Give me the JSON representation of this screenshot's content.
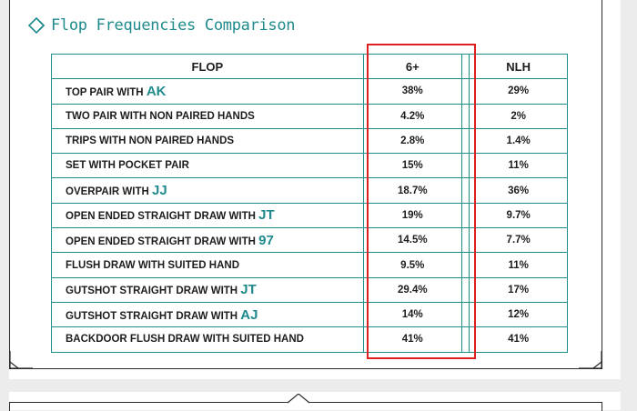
{
  "title": "Flop Frequencies Comparison",
  "icon": "double-diamond-icon",
  "colors": {
    "accent": "#1f8a8c",
    "highlight": "#e02020",
    "border": "#1a8f8c"
  },
  "table": {
    "headers": [
      "FLOP",
      "6+",
      "NLH"
    ],
    "rows": [
      {
        "label": "TOP PAIR WITH ",
        "cards": "AK",
        "six": "38%",
        "nlh": "29%"
      },
      {
        "label": "TWO PAIR WITH NON PAIRED HANDS",
        "cards": "",
        "six": "4.2%",
        "nlh": "2%"
      },
      {
        "label": "TRIPS WITH NON PAIRED HANDS",
        "cards": "",
        "six": "2.8%",
        "nlh": "1.4%"
      },
      {
        "label": "SET WITH POCKET PAIR",
        "cards": "",
        "six": "15%",
        "nlh": "11%"
      },
      {
        "label": "OVERPAIR WITH ",
        "cards": "JJ",
        "six": "18.7%",
        "nlh": "36%"
      },
      {
        "label": "OPEN ENDED STRAIGHT DRAW WITH ",
        "cards": "JT",
        "six": "19%",
        "nlh": "9.7%"
      },
      {
        "label": "OPEN ENDED STRAIGHT DRAW WITH ",
        "cards": "97",
        "six": "14.5%",
        "nlh": "7.7%"
      },
      {
        "label": "FLUSH DRAW WITH SUITED HAND",
        "cards": "",
        "six": "9.5%",
        "nlh": "11%"
      },
      {
        "label": "GUTSHOT STRAIGHT DRAW WITH ",
        "cards": "JT",
        "six": "29.4%",
        "nlh": "17%"
      },
      {
        "label": "GUTSHOT STRAIGHT DRAW WITH ",
        "cards": "AJ",
        "six": "14%",
        "nlh": "12%"
      },
      {
        "label": "BACKDOOR FLUSH DRAW WITH SUITED HAND",
        "cards": "",
        "six": "41%",
        "nlh": "41%"
      }
    ]
  }
}
